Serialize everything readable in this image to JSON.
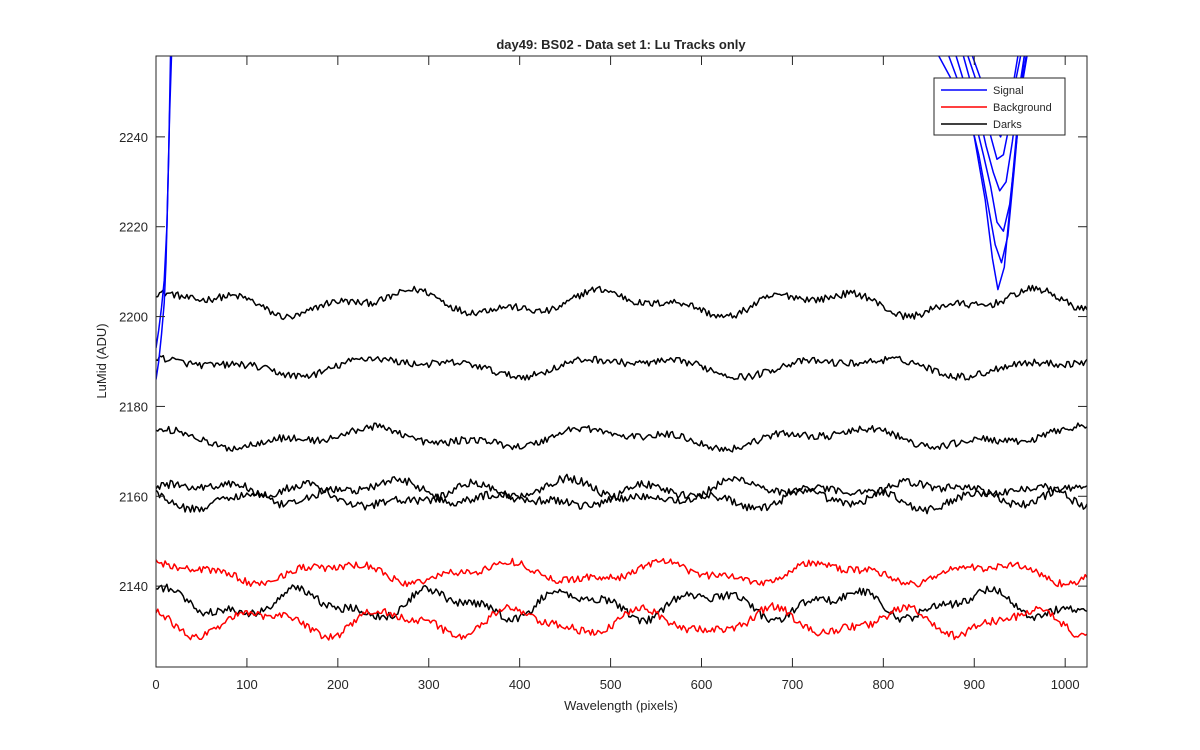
{
  "chart_data": {
    "type": "line",
    "title": "day49: BS02 - Data set 1: Lu Tracks only",
    "xlabel": "Wavelength (pixels)",
    "ylabel": "LuMid (ADU)",
    "xlim": [
      0,
      1024
    ],
    "ylim": [
      2122,
      2258
    ],
    "xticks": [
      0,
      100,
      200,
      300,
      400,
      500,
      600,
      700,
      800,
      900,
      1000
    ],
    "yticks": [
      2140,
      2160,
      2180,
      2200,
      2220,
      2240
    ],
    "legend": {
      "placement": "top-right",
      "entries": [
        {
          "label": "Signal",
          "color": "#0000ff"
        },
        {
          "label": "Background",
          "color": "#ff0000"
        },
        {
          "label": "Darks",
          "color": "#000000"
        }
      ]
    },
    "series": [
      {
        "name": "Darks",
        "color": "#000000",
        "base": 2203,
        "waves": [
          [
            2.0,
            230,
            0.5
          ],
          [
            1.2,
            97,
            1.7
          ]
        ],
        "noise": 0.8
      },
      {
        "name": "Darks",
        "color": "#000000",
        "base": 2189,
        "waves": [
          [
            1.5,
            250,
            1.1
          ],
          [
            0.9,
            120,
            2.4
          ]
        ],
        "noise": 0.8
      },
      {
        "name": "Darks",
        "color": "#000000",
        "base": 2173,
        "waves": [
          [
            1.5,
            260,
            2.2
          ],
          [
            1.0,
            110,
            0.3
          ]
        ],
        "noise": 0.8
      },
      {
        "name": "Darks",
        "color": "#000000",
        "base": 2161,
        "waves": [
          [
            2.0,
            200,
            0.0
          ],
          [
            1.0,
            90,
            1.3
          ]
        ],
        "noise": 0.9
      },
      {
        "name": "Darks",
        "color": "#000000",
        "base": 2160,
        "waves": [
          [
            2.0,
            200,
            3.14
          ],
          [
            1.0,
            90,
            2.2
          ]
        ],
        "noise": 0.9
      },
      {
        "name": "Darks",
        "color": "#000000",
        "base": 2136,
        "waves": [
          [
            2.5,
            150,
            1.2
          ],
          [
            1.2,
            70,
            0.4
          ]
        ],
        "noise": 0.9
      },
      {
        "name": "Background",
        "color": "#ff0000",
        "base": 2143,
        "waves": [
          [
            1.8,
            180,
            0.9
          ],
          [
            0.8,
            80,
            2.0
          ]
        ],
        "noise": 0.8
      },
      {
        "name": "Background",
        "color": "#ff0000",
        "base": 2132,
        "waves": [
          [
            2.5,
            140,
            2.6
          ],
          [
            1.0,
            75,
            1.1
          ]
        ],
        "noise": 0.9
      },
      {
        "name": "Signal",
        "color": "#0000ff",
        "segment": "left-edge",
        "points": [
          [
            0,
            2186
          ],
          [
            3,
            2190
          ],
          [
            6,
            2196
          ],
          [
            9,
            2203
          ],
          [
            11,
            2212
          ],
          [
            13,
            2228
          ],
          [
            15,
            2245
          ],
          [
            17,
            2258
          ]
        ]
      },
      {
        "name": "Signal",
        "color": "#0000ff",
        "segment": "left-edge",
        "points": [
          [
            0,
            2193
          ],
          [
            3,
            2197
          ],
          [
            6,
            2202
          ],
          [
            9,
            2208
          ],
          [
            12,
            2220
          ],
          [
            14,
            2236
          ],
          [
            16,
            2258
          ]
        ]
      },
      {
        "name": "Signal",
        "color": "#0000ff",
        "segment": "dip",
        "points": [
          [
            861,
            2258
          ],
          [
            885,
            2249
          ],
          [
            900,
            2240
          ],
          [
            912,
            2226
          ],
          [
            920,
            2213
          ],
          [
            926,
            2206
          ],
          [
            933,
            2211
          ],
          [
            940,
            2226
          ],
          [
            948,
            2244
          ],
          [
            955,
            2258
          ]
        ]
      },
      {
        "name": "Signal",
        "color": "#0000ff",
        "segment": "dip",
        "points": [
          [
            872,
            2258
          ],
          [
            892,
            2247
          ],
          [
            905,
            2236
          ],
          [
            915,
            2225
          ],
          [
            923,
            2216
          ],
          [
            930,
            2212
          ],
          [
            937,
            2218
          ],
          [
            944,
            2233
          ],
          [
            951,
            2249
          ],
          [
            957,
            2258
          ]
        ]
      },
      {
        "name": "Signal",
        "color": "#0000ff",
        "segment": "dip",
        "points": [
          [
            880,
            2258
          ],
          [
            898,
            2246
          ],
          [
            910,
            2236
          ],
          [
            918,
            2229
          ],
          [
            925,
            2221
          ],
          [
            932,
            2219
          ],
          [
            939,
            2225
          ],
          [
            946,
            2238
          ],
          [
            953,
            2252
          ],
          [
            958,
            2258
          ]
        ]
      },
      {
        "name": "Signal",
        "color": "#0000ff",
        "segment": "dip",
        "points": [
          [
            888,
            2258
          ],
          [
            903,
            2247
          ],
          [
            913,
            2238
          ],
          [
            921,
            2232
          ],
          [
            928,
            2228
          ],
          [
            935,
            2230
          ],
          [
            942,
            2239
          ],
          [
            949,
            2250
          ],
          [
            955,
            2258
          ]
        ]
      },
      {
        "name": "Signal",
        "color": "#0000ff",
        "segment": "dip",
        "points": [
          [
            893,
            2258
          ],
          [
            908,
            2249
          ],
          [
            917,
            2241
          ],
          [
            925,
            2235
          ],
          [
            932,
            2236
          ],
          [
            939,
            2243
          ],
          [
            946,
            2253
          ],
          [
            951,
            2258
          ]
        ]
      },
      {
        "name": "Signal",
        "color": "#0000ff",
        "segment": "dip",
        "points": [
          [
            898,
            2258
          ],
          [
            912,
            2250
          ],
          [
            921,
            2243
          ],
          [
            929,
            2240
          ],
          [
            936,
            2244
          ],
          [
            943,
            2252
          ],
          [
            948,
            2258
          ]
        ]
      }
    ]
  }
}
